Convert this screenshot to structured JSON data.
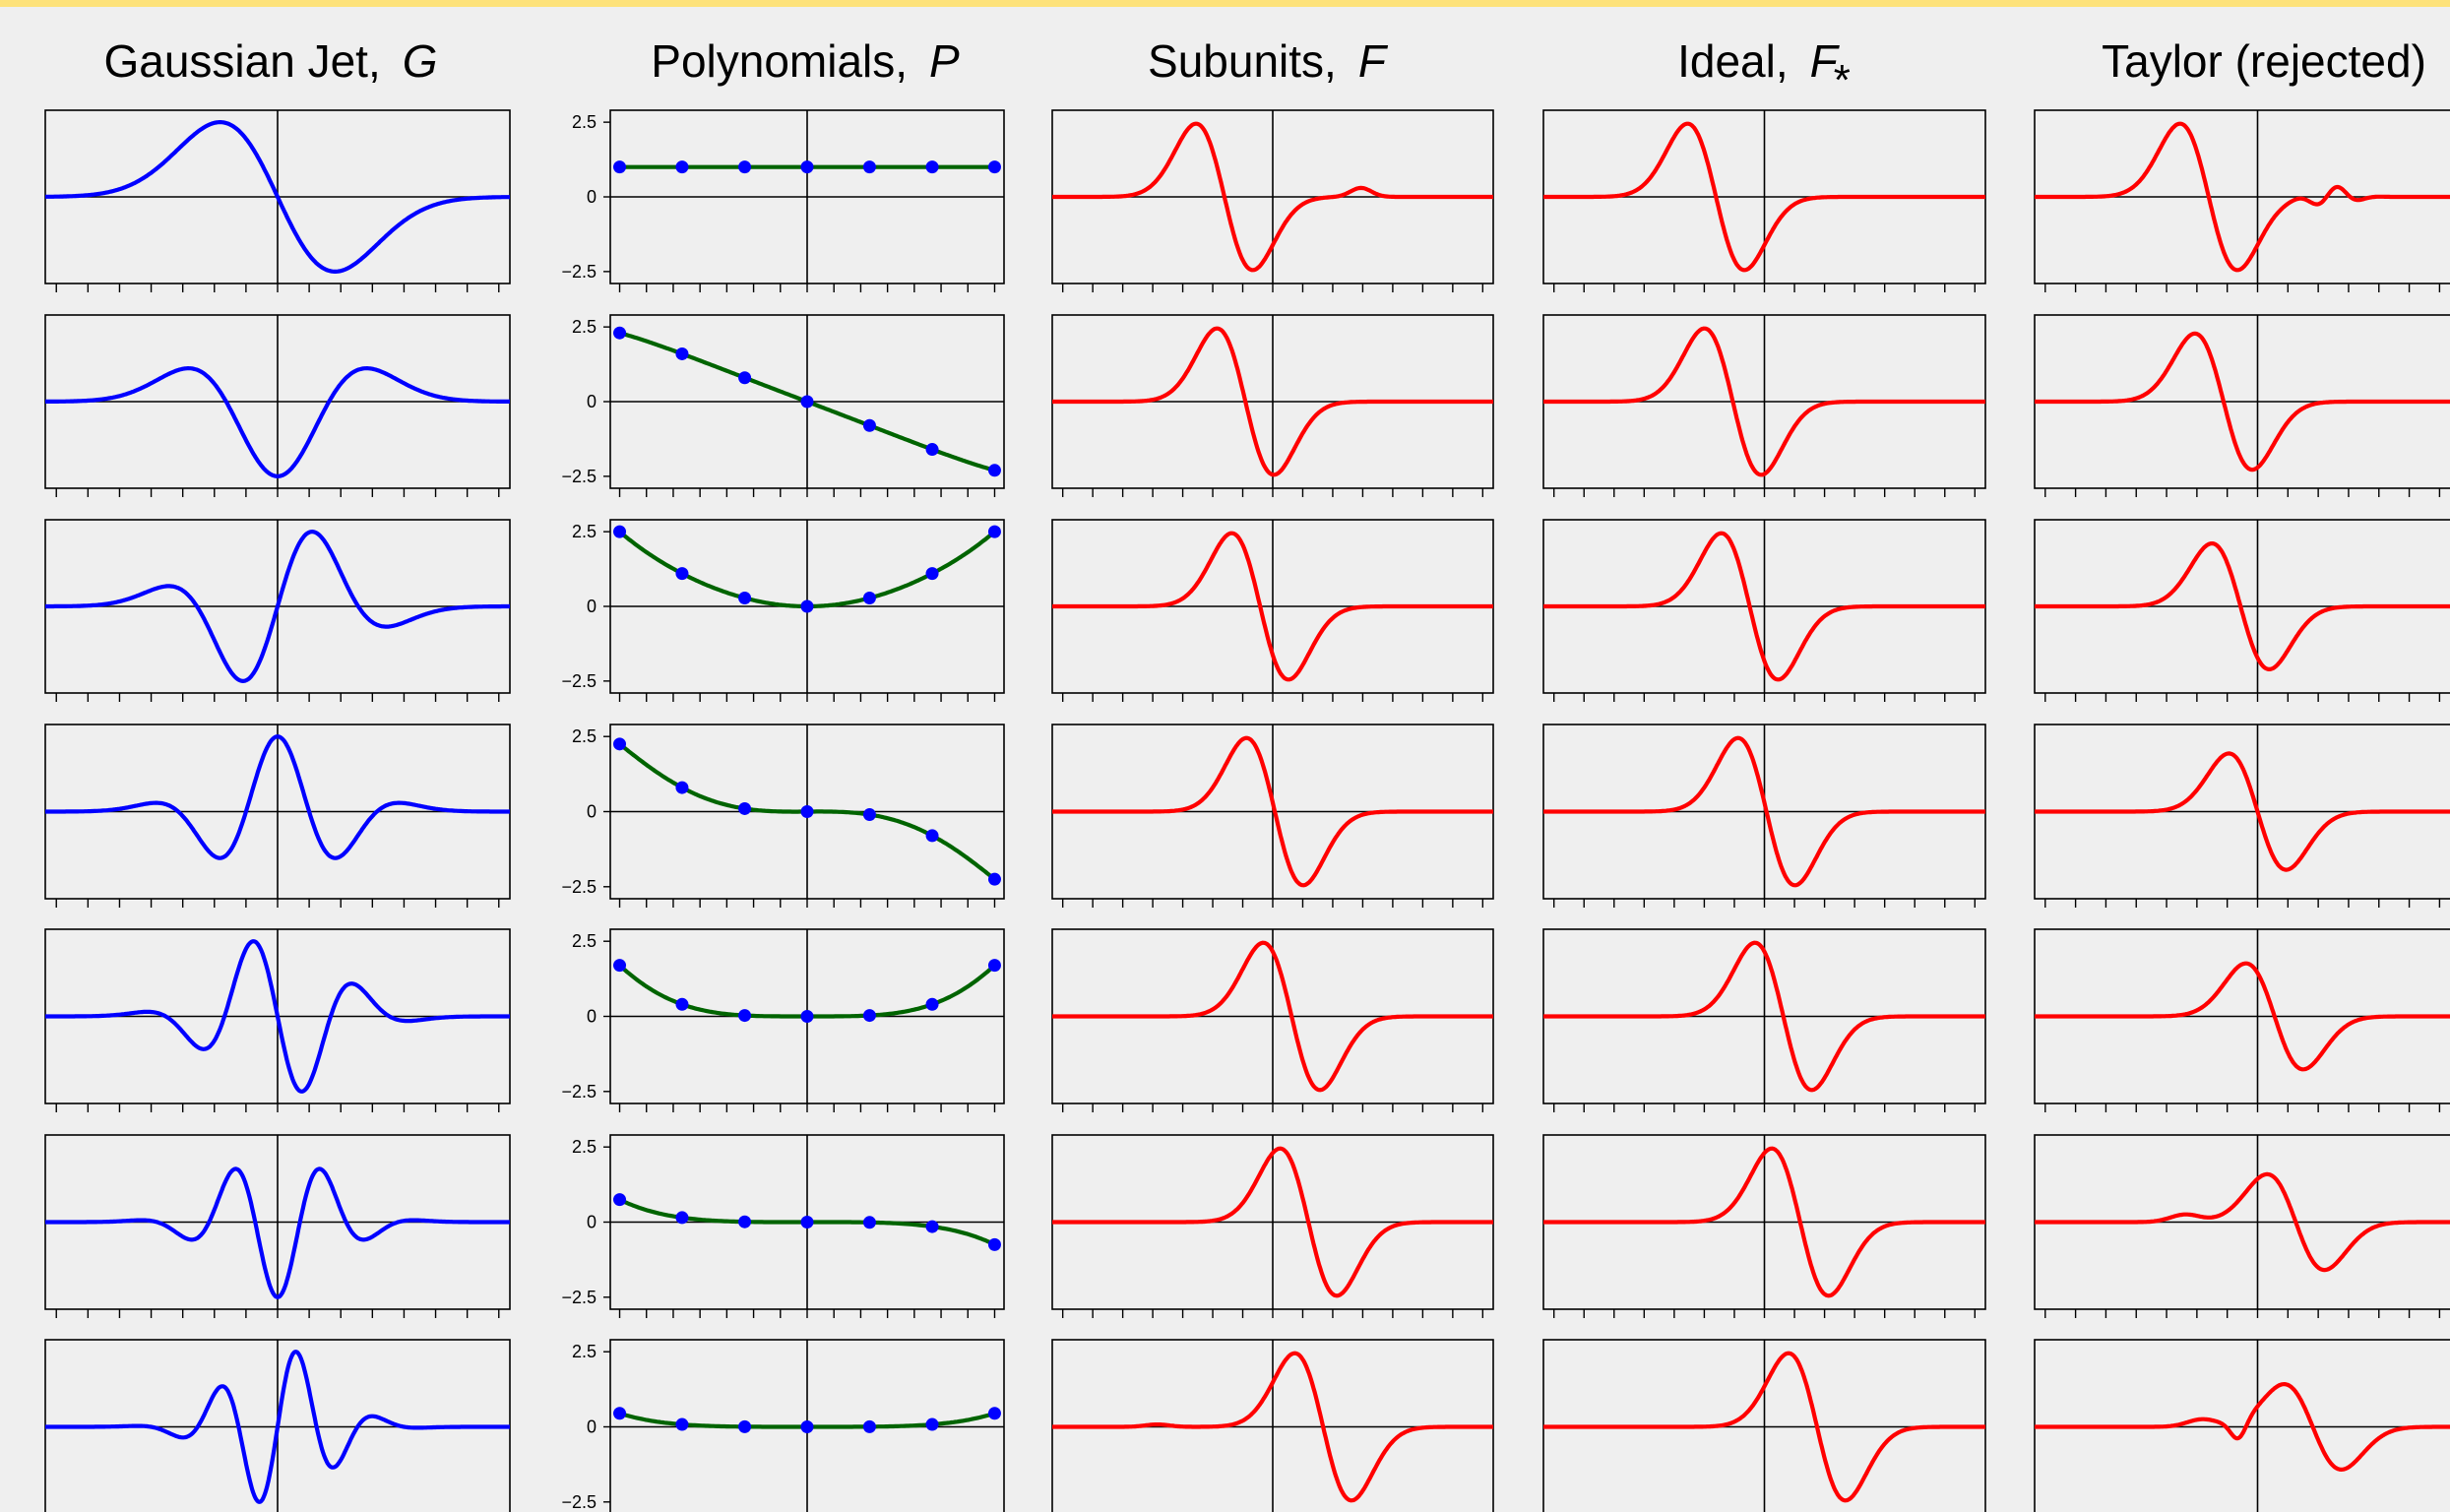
{
  "columns": [
    {
      "title": "Gaussian Jet,",
      "symbol": "G",
      "subscript": "",
      "color": "#0000ff"
    },
    {
      "title": "Polynomials,",
      "symbol": "P",
      "subscript": "",
      "color": "#006400"
    },
    {
      "title": "Subunits,",
      "symbol": "F",
      "subscript": "",
      "color": "#ff0000"
    },
    {
      "title": "Ideal,",
      "symbol": "F",
      "subscript": "*",
      "color": "#ff0000"
    },
    {
      "title": "Taylor  (rejected)",
      "symbol": "",
      "subscript": "",
      "color": "#ff0000"
    }
  ],
  "colors": {
    "background": "#efefef",
    "top_bar": "#fde27a",
    "axis": "#000000",
    "marker": "#0000ff"
  },
  "chart_data": {
    "type": "line",
    "layout": "grid of 7 rows x 5 columns of small-multiple line plots",
    "rows": 7,
    "grid": false,
    "ytick_labels": [
      "2.5",
      "0",
      "−2.5"
    ],
    "ylim": [
      -2.9,
      2.9
    ],
    "xlim": [
      -1.05,
      1.05
    ],
    "polynomial_sample_x": [
      -1,
      -0.667,
      -0.333,
      0,
      0.333,
      0.667,
      1
    ],
    "panels": {
      "gaussian_jet": {
        "description": "derivatives of a Gaussian, orders 1-7 (normalized)",
        "series_color": "blue"
      },
      "polynomials": {
        "series_color": "dark green",
        "marker_color": "blue",
        "series": [
          {
            "y": [
              1,
              1,
              1,
              1,
              1,
              1,
              1
            ]
          },
          {
            "y": [
              2.3,
              1.6,
              0.8,
              0,
              -0.8,
              -1.6,
              -2.3
            ]
          },
          {
            "y": [
              2.5,
              1.1,
              0.28,
              0,
              0.28,
              1.1,
              2.5
            ]
          },
          {
            "y": [
              2.25,
              0.8,
              0.1,
              0,
              -0.1,
              -0.8,
              -2.25
            ]
          },
          {
            "y": [
              1.7,
              0.4,
              0.03,
              0,
              0.03,
              0.4,
              1.7
            ]
          },
          {
            "y": [
              0.75,
              0.15,
              0.01,
              0,
              -0.01,
              -0.15,
              -0.75
            ]
          },
          {
            "y": [
              0.45,
              0.08,
              0.005,
              0,
              0.005,
              0.08,
              0.45
            ]
          }
        ]
      },
      "subunits": {
        "series_color": "red",
        "peak_x": [
          -0.4,
          -0.3,
          -0.23,
          -0.16,
          -0.08,
          0,
          0.07
        ]
      },
      "ideal": {
        "series_color": "red",
        "peak_x": [
          -0.4,
          -0.32,
          -0.24,
          -0.16,
          -0.08,
          0,
          0.08
        ]
      },
      "taylor": {
        "series_color": "red",
        "peak_x": [
          -0.4,
          -0.33,
          -0.25,
          -0.17,
          -0.09,
          0.01,
          0.09
        ]
      }
    }
  }
}
